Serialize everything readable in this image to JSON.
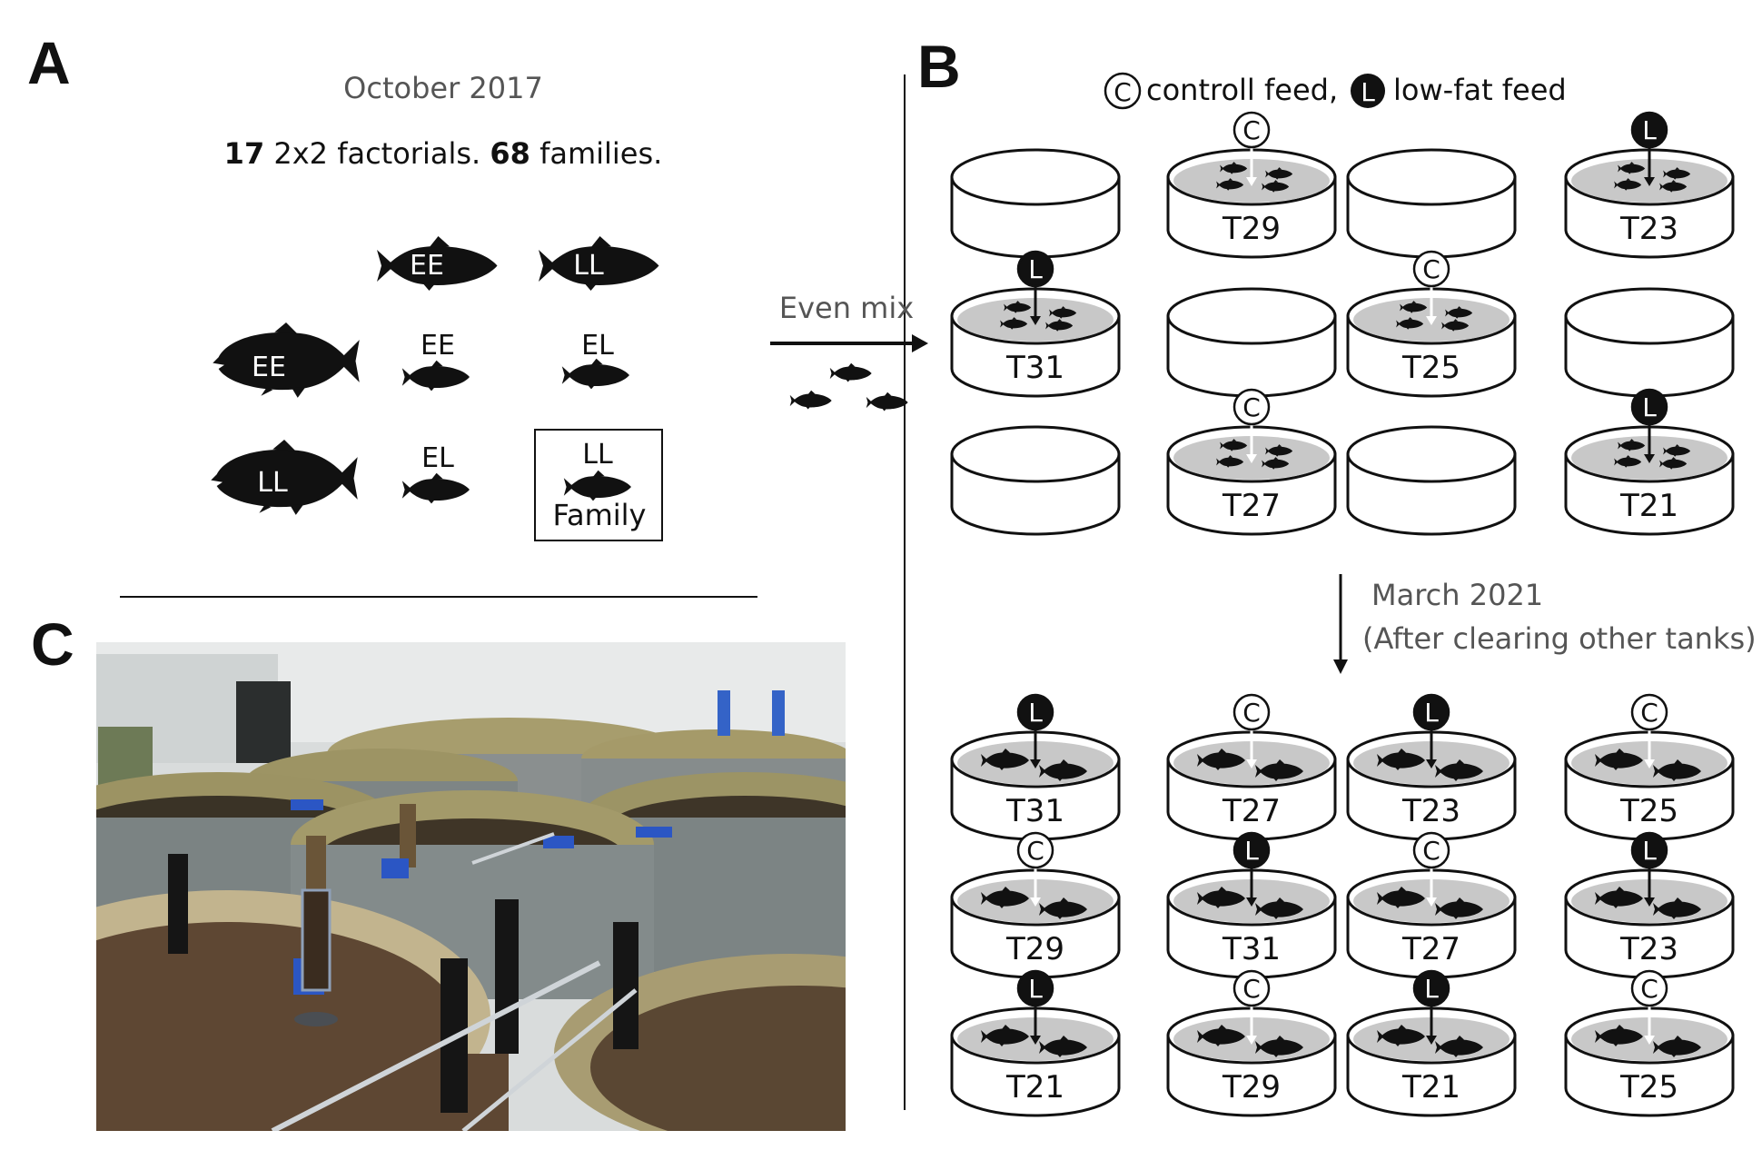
{
  "panels": {
    "a": "A",
    "b": "B",
    "c": "C"
  },
  "panel_a": {
    "date": "October 2017",
    "summary": {
      "n_factorials": "17",
      "factorials_text": " 2x2 factorials. ",
      "n_families": "68",
      "families_text": " families."
    },
    "male_labels": [
      "EE",
      "LL"
    ],
    "female_labels": [
      "EE",
      "LL"
    ],
    "cell_labels": [
      "EE",
      "EL",
      "EL",
      "LL"
    ],
    "family_box_label": "Family"
  },
  "mix_label": "Even mix",
  "panel_b": {
    "legend": {
      "c_symbol": "C",
      "c_text": "controll feed,",
      "l_symbol": "L",
      "l_text": "low-fat feed"
    },
    "grid_2017": [
      {
        "label": "",
        "feed": ""
      },
      {
        "label": "T29",
        "feed": "C"
      },
      {
        "label": "",
        "feed": ""
      },
      {
        "label": "T23",
        "feed": "L"
      },
      {
        "label": "T31",
        "feed": "L"
      },
      {
        "label": "",
        "feed": ""
      },
      {
        "label": "T25",
        "feed": "C"
      },
      {
        "label": "",
        "feed": ""
      },
      {
        "label": "",
        "feed": ""
      },
      {
        "label": "T27",
        "feed": "C"
      },
      {
        "label": "",
        "feed": ""
      },
      {
        "label": "T21",
        "feed": "L"
      }
    ],
    "transition": {
      "date": "March 2021",
      "note": "(After clearing other tanks)"
    },
    "grid_2021": [
      {
        "label": "T31",
        "feed": "L"
      },
      {
        "label": "T27",
        "feed": "C"
      },
      {
        "label": "T23",
        "feed": "L"
      },
      {
        "label": "T25",
        "feed": "C"
      },
      {
        "label": "T29",
        "feed": "C"
      },
      {
        "label": "T31",
        "feed": "L"
      },
      {
        "label": "T27",
        "feed": "C"
      },
      {
        "label": "T23",
        "feed": "L"
      },
      {
        "label": "T21",
        "feed": "L"
      },
      {
        "label": "T29",
        "feed": "C"
      },
      {
        "label": "T21",
        "feed": "L"
      },
      {
        "label": "T25",
        "feed": "C"
      }
    ]
  },
  "panel_c": {
    "photo_icon": "fish-tank-facility-photo"
  },
  "colors": {
    "ink": "#111111",
    "gray_text": "#555555",
    "water": "#c8c8c8"
  }
}
